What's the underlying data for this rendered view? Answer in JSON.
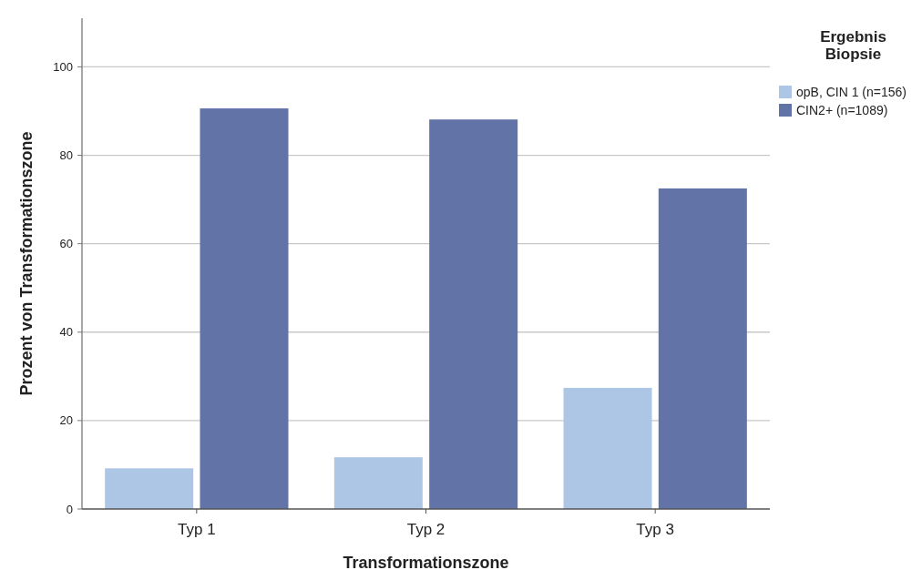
{
  "chart_data": {
    "type": "bar",
    "xlabel": "Transformationszone",
    "ylabel": "Prozent von Transformationszone",
    "legend_title": "Ergebnis Biopsie",
    "categories": [
      "Typ 1",
      "Typ 2",
      "Typ 3"
    ],
    "series": [
      {
        "name": "opB, CIN 1 (n=156)",
        "color": "#aec6e6",
        "values": [
          9.2,
          11.7,
          27.4
        ]
      },
      {
        "name": "CIN2+ (n=1089)",
        "color": "#6273a8",
        "values": [
          90.6,
          88.1,
          72.5
        ]
      }
    ],
    "ylim": [
      0,
      111
    ],
    "yticks": [
      0,
      20,
      40,
      60,
      80,
      100
    ],
    "grid": "y",
    "legend": "top right"
  }
}
